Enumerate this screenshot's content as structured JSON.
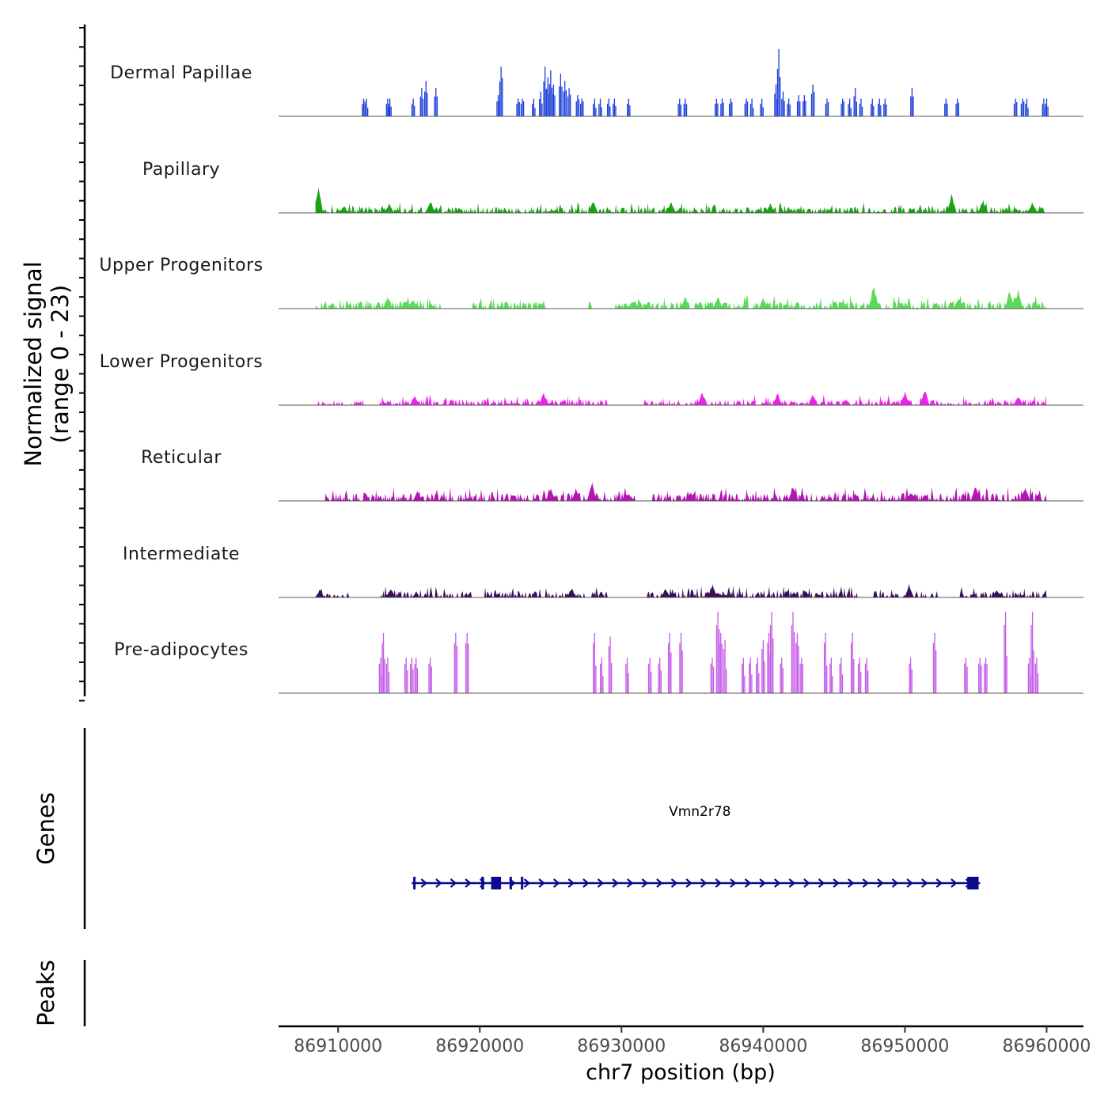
{
  "chart_data": {
    "type": "area",
    "title": "",
    "y_axis_label_line1": "Normalized signal",
    "y_axis_label_line2": "(range 0 - 23)",
    "ylim": [
      0,
      23
    ],
    "xlabel": "chr7 position (bp)",
    "xlim": [
      86905800,
      86962600
    ],
    "x_ticks": [
      86910000,
      86920000,
      86930000,
      86940000,
      86950000,
      86960000
    ],
    "x_tick_labels": [
      "86910000",
      "86920000",
      "86930000",
      "86940000",
      "86950000",
      "86960000"
    ],
    "signal_start": 86908400,
    "signal_end": 86960000,
    "series": [
      {
        "name": "Dermal Papillae",
        "color": "#1a3fd8",
        "style": "sparse",
        "peaks": [
          {
            "x": 86911800,
            "v": 5
          },
          {
            "x": 86912000,
            "v": 5
          },
          {
            "x": 86913500,
            "v": 5
          },
          {
            "x": 86913650,
            "v": 5
          },
          {
            "x": 86915300,
            "v": 5
          },
          {
            "x": 86915900,
            "v": 8
          },
          {
            "x": 86916200,
            "v": 10
          },
          {
            "x": 86916900,
            "v": 8
          },
          {
            "x": 86921300,
            "v": 6
          },
          {
            "x": 86921500,
            "v": 14
          },
          {
            "x": 86922700,
            "v": 5
          },
          {
            "x": 86923000,
            "v": 5
          },
          {
            "x": 86923800,
            "v": 5
          },
          {
            "x": 86924300,
            "v": 7
          },
          {
            "x": 86924600,
            "v": 14
          },
          {
            "x": 86924800,
            "v": 11
          },
          {
            "x": 86925000,
            "v": 13
          },
          {
            "x": 86925200,
            "v": 9
          },
          {
            "x": 86925700,
            "v": 12
          },
          {
            "x": 86926000,
            "v": 10
          },
          {
            "x": 86926300,
            "v": 8
          },
          {
            "x": 86926900,
            "v": 6
          },
          {
            "x": 86927200,
            "v": 5
          },
          {
            "x": 86928100,
            "v": 5
          },
          {
            "x": 86928500,
            "v": 5
          },
          {
            "x": 86929100,
            "v": 5
          },
          {
            "x": 86929500,
            "v": 5
          },
          {
            "x": 86930500,
            "v": 5
          },
          {
            "x": 86934100,
            "v": 5
          },
          {
            "x": 86934500,
            "v": 5
          },
          {
            "x": 86936700,
            "v": 5
          },
          {
            "x": 86937100,
            "v": 5
          },
          {
            "x": 86937700,
            "v": 5
          },
          {
            "x": 86938800,
            "v": 5
          },
          {
            "x": 86939200,
            "v": 5
          },
          {
            "x": 86939900,
            "v": 5
          },
          {
            "x": 86940900,
            "v": 9
          },
          {
            "x": 86941100,
            "v": 19
          },
          {
            "x": 86941400,
            "v": 7
          },
          {
            "x": 86941800,
            "v": 5
          },
          {
            "x": 86942500,
            "v": 6
          },
          {
            "x": 86942900,
            "v": 6
          },
          {
            "x": 86943500,
            "v": 9
          },
          {
            "x": 86944500,
            "v": 5
          },
          {
            "x": 86945600,
            "v": 5
          },
          {
            "x": 86946100,
            "v": 5
          },
          {
            "x": 86946500,
            "v": 8
          },
          {
            "x": 86946900,
            "v": 5
          },
          {
            "x": 86947700,
            "v": 5
          },
          {
            "x": 86948200,
            "v": 5
          },
          {
            "x": 86948600,
            "v": 5
          },
          {
            "x": 86950500,
            "v": 8
          },
          {
            "x": 86952900,
            "v": 5
          },
          {
            "x": 86953700,
            "v": 5
          },
          {
            "x": 86957800,
            "v": 5
          },
          {
            "x": 86958300,
            "v": 5
          },
          {
            "x": 86958600,
            "v": 5
          },
          {
            "x": 86959800,
            "v": 5
          },
          {
            "x": 86960000,
            "v": 5
          }
        ]
      },
      {
        "name": "Papillary",
        "color": "#18a312",
        "style": "dense",
        "base": 1.1,
        "gaps": [],
        "peaks": [
          {
            "x": 86908600,
            "v": 8
          },
          {
            "x": 86913600,
            "v": 3
          },
          {
            "x": 86916500,
            "v": 4
          },
          {
            "x": 86928000,
            "v": 4
          },
          {
            "x": 86933500,
            "v": 3.5
          },
          {
            "x": 86940500,
            "v": 3
          },
          {
            "x": 86953300,
            "v": 6
          },
          {
            "x": 86955500,
            "v": 4
          },
          {
            "x": 86959000,
            "v": 3.5
          }
        ]
      },
      {
        "name": "Upper Progenitors",
        "color": "#5ad95a",
        "style": "dense",
        "base": 1.4,
        "gaps": [
          [
            86917200,
            86919500
          ],
          [
            86924800,
            86927600
          ],
          [
            86927900,
            86929500
          ]
        ],
        "peaks": [
          {
            "x": 86913500,
            "v": 4
          },
          {
            "x": 86915300,
            "v": 3
          },
          {
            "x": 86934500,
            "v": 4
          },
          {
            "x": 86936800,
            "v": 4
          },
          {
            "x": 86940000,
            "v": 3
          },
          {
            "x": 86947800,
            "v": 8
          },
          {
            "x": 86953800,
            "v": 3.5
          },
          {
            "x": 86957400,
            "v": 6
          },
          {
            "x": 86958000,
            "v": 6
          }
        ]
      },
      {
        "name": "Lower Progenitors",
        "color": "#ee22ee",
        "style": "dense",
        "base": 1.1,
        "gaps": [
          [
            86911800,
            86912900
          ],
          [
            86929000,
            86931600
          ]
        ],
        "peaks": [
          {
            "x": 86915400,
            "v": 3
          },
          {
            "x": 86924500,
            "v": 4
          },
          {
            "x": 86935700,
            "v": 4
          },
          {
            "x": 86941000,
            "v": 4
          },
          {
            "x": 86943500,
            "v": 3.5
          },
          {
            "x": 86950000,
            "v": 4
          },
          {
            "x": 86951400,
            "v": 5
          },
          {
            "x": 86958000,
            "v": 3
          }
        ]
      },
      {
        "name": "Reticular",
        "color": "#b314b3",
        "style": "dense",
        "base": 1.5,
        "gaps": [
          [
            86908400,
            86909000
          ],
          [
            86931000,
            86932200
          ]
        ],
        "peaks": [
          {
            "x": 86915600,
            "v": 3
          },
          {
            "x": 86925000,
            "v": 4
          },
          {
            "x": 86926800,
            "v": 4
          },
          {
            "x": 86927900,
            "v": 6
          },
          {
            "x": 86942100,
            "v": 5
          },
          {
            "x": 86950400,
            "v": 3
          },
          {
            "x": 86955000,
            "v": 5
          },
          {
            "x": 86958500,
            "v": 4.5
          }
        ]
      },
      {
        "name": "Intermediate",
        "color": "#3b0f5c",
        "style": "dense",
        "base": 1.2,
        "gaps": [
          [
            86910800,
            86913000
          ],
          [
            86919500,
            86920100
          ],
          [
            86929000,
            86931700
          ],
          [
            86946700,
            86947800
          ],
          [
            86952300,
            86953800
          ]
        ],
        "peaks": [
          {
            "x": 86908700,
            "v": 2.5
          },
          {
            "x": 86913700,
            "v": 2.5
          },
          {
            "x": 86926500,
            "v": 3
          },
          {
            "x": 86933100,
            "v": 3
          },
          {
            "x": 86936400,
            "v": 4
          },
          {
            "x": 86950300,
            "v": 4
          },
          {
            "x": 86956500,
            "v": 2.5
          },
          {
            "x": 86960000,
            "v": 3
          }
        ]
      },
      {
        "name": "Pre-adipocytes",
        "color": "#c45ae8",
        "style": "sparse",
        "peaks": [
          {
            "x": 86913000,
            "v": 10
          },
          {
            "x": 86913200,
            "v": 17
          },
          {
            "x": 86913500,
            "v": 10
          },
          {
            "x": 86914800,
            "v": 10
          },
          {
            "x": 86915200,
            "v": 10
          },
          {
            "x": 86915500,
            "v": 10
          },
          {
            "x": 86916500,
            "v": 10
          },
          {
            "x": 86918300,
            "v": 17
          },
          {
            "x": 86919100,
            "v": 17
          },
          {
            "x": 86928100,
            "v": 17
          },
          {
            "x": 86928600,
            "v": 10
          },
          {
            "x": 86929200,
            "v": 16
          },
          {
            "x": 86930400,
            "v": 10
          },
          {
            "x": 86932000,
            "v": 10
          },
          {
            "x": 86932700,
            "v": 10
          },
          {
            "x": 86933400,
            "v": 17
          },
          {
            "x": 86934200,
            "v": 17
          },
          {
            "x": 86936400,
            "v": 10
          },
          {
            "x": 86936800,
            "v": 23
          },
          {
            "x": 86937000,
            "v": 17
          },
          {
            "x": 86937300,
            "v": 15
          },
          {
            "x": 86938600,
            "v": 10
          },
          {
            "x": 86939100,
            "v": 10
          },
          {
            "x": 86939600,
            "v": 10
          },
          {
            "x": 86940000,
            "v": 15
          },
          {
            "x": 86940400,
            "v": 17
          },
          {
            "x": 86940600,
            "v": 23
          },
          {
            "x": 86941300,
            "v": 10
          },
          {
            "x": 86942100,
            "v": 23
          },
          {
            "x": 86942400,
            "v": 17
          },
          {
            "x": 86942700,
            "v": 10
          },
          {
            "x": 86944400,
            "v": 17
          },
          {
            "x": 86944800,
            "v": 10
          },
          {
            "x": 86945500,
            "v": 10
          },
          {
            "x": 86946300,
            "v": 17
          },
          {
            "x": 86946800,
            "v": 10
          },
          {
            "x": 86947300,
            "v": 10
          },
          {
            "x": 86950400,
            "v": 10
          },
          {
            "x": 86952100,
            "v": 17
          },
          {
            "x": 86954300,
            "v": 10
          },
          {
            "x": 86955300,
            "v": 10
          },
          {
            "x": 86955700,
            "v": 10
          },
          {
            "x": 86957100,
            "v": 23
          },
          {
            "x": 86958800,
            "v": 10
          },
          {
            "x": 86959000,
            "v": 23
          },
          {
            "x": 86959300,
            "v": 10
          }
        ]
      }
    ],
    "genes_track_label": "Genes",
    "peaks_track_label": "Peaks",
    "gene": {
      "name": "Vmn2r78",
      "color": "#0a0a8c",
      "strand": "+",
      "start": 86915200,
      "end": 86955300,
      "exons": [
        {
          "start": 86915300,
          "end": 86915450
        },
        {
          "start": 86920100,
          "end": 86920300
        },
        {
          "start": 86920800,
          "end": 86921500
        },
        {
          "start": 86922100,
          "end": 86922250
        },
        {
          "start": 86922900,
          "end": 86923000
        },
        {
          "start": 86954400,
          "end": 86955200
        }
      ]
    }
  }
}
